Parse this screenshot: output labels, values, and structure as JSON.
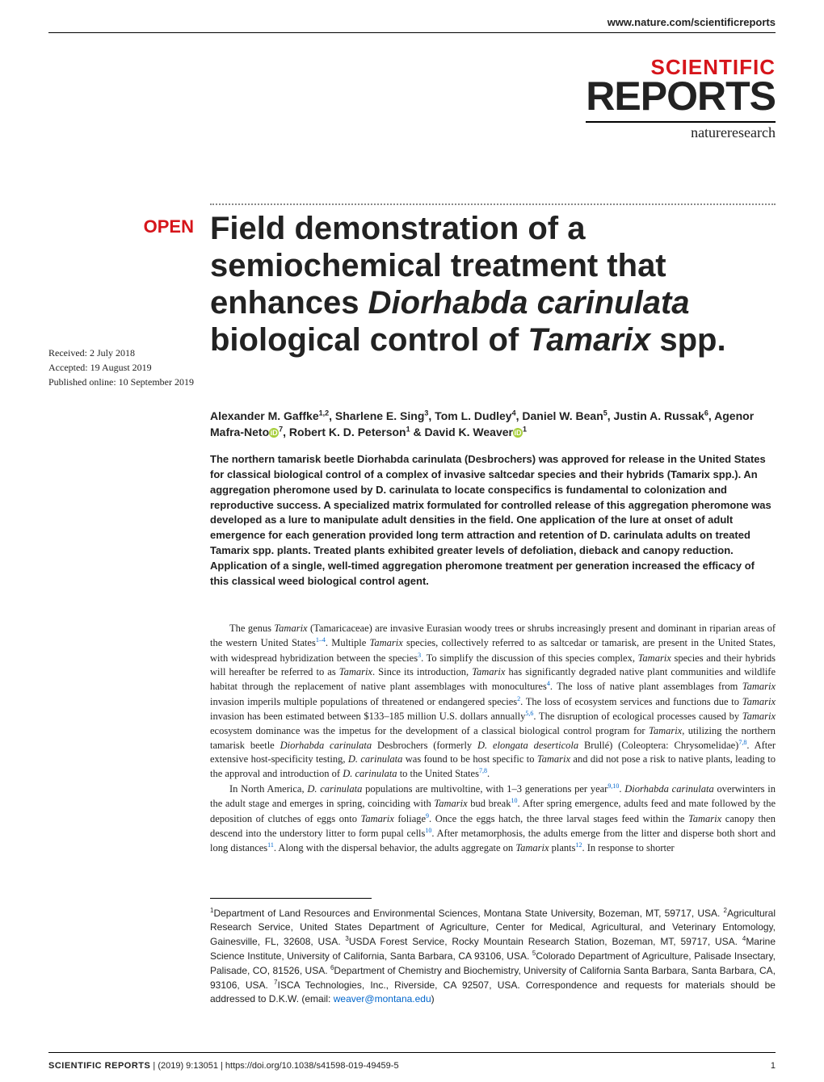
{
  "header": {
    "site_url": "www.nature.com/scientificreports",
    "logo_line1": "SCIENTIFIC",
    "logo_line2": "REPORTS",
    "logo_sub": "natureresearch"
  },
  "badge": {
    "open": "OPEN"
  },
  "title": {
    "l1": "Field demonstration of a",
    "l2": "semiochemical treatment that",
    "l3_a": "enhances ",
    "l3_b_ital": "Diorhabda carinulata",
    "l4_a": "biological control of ",
    "l4_b_ital": "Tamarix",
    "l4_c": " spp."
  },
  "meta": {
    "received": "Received: 2 July 2018",
    "accepted": "Accepted: 19 August 2019",
    "published": "Published online: 10 September 2019"
  },
  "authors": {
    "a1": "Alexander M. Gaffke",
    "s1": "1,2",
    "a2": ", Sharlene E. Sing",
    "s2": "3",
    "a3": ", Tom L. Dudley",
    "s3": "4",
    "a4": ", Daniel W. Bean",
    "s4": "5",
    "a5": ", Justin A. Russak",
    "s5": "6",
    "a6": "Agenor Mafra-Neto",
    "s6": "7",
    "a7": ", Robert K. D. Peterson",
    "s7": "1",
    "a8": " & David K. Weaver",
    "s8": "1"
  },
  "abstract": {
    "text": "The northern tamarisk beetle Diorhabda carinulata (Desbrochers) was approved for release in the United States for classical biological control of a complex of invasive saltcedar species and their hybrids (Tamarix spp.). An aggregation pheromone used by D. carinulata to locate conspecifics is fundamental to colonization and reproductive success. A specialized matrix formulated for controlled release of this aggregation pheromone was developed as a lure to manipulate adult densities in the field. One application of the lure at onset of adult emergence for each generation provided long term attraction and retention of D. carinulata adults on treated Tamarix spp. plants. Treated plants exhibited greater levels of defoliation, dieback and canopy reduction. Application of a single, well-timed aggregation pheromone treatment per generation increased the efficacy of this classical weed biological control agent."
  },
  "body": {
    "p1_a": "The genus ",
    "p1_b_ital": "Tamarix",
    "p1_c": " (Tamaricaceae) are invasive Eurasian woody trees or shrubs increasingly present and dominant in riparian areas of the western United States",
    "p1_ref1": "1–4",
    "p1_d": ". Multiple ",
    "p1_e_ital": "Tamarix",
    "p1_f": " species, collectively referred to as saltcedar or tamarisk, are present in the United States, with widespread hybridization between the species",
    "p1_ref2": "3",
    "p1_g": ". To simplify the discussion of this species complex, ",
    "p1_h_ital": "Tamarix",
    "p1_i": " species and their hybrids will hereafter be referred to as ",
    "p1_j_ital": "Tamarix",
    "p1_k": ". Since its introduction, ",
    "p1_l_ital": "Tamarix",
    "p1_m": " has significantly degraded native plant communities and wildlife habitat through the replacement of native plant assemblages with monocultures",
    "p1_ref3": "4",
    "p1_n": ". The loss of native plant assemblages from ",
    "p1_o_ital": "Tamarix",
    "p1_p": " invasion imperils multiple populations of threatened or endangered species",
    "p1_ref4": "2",
    "p1_q": ". The loss of ecosystem services and functions due to ",
    "p1_r_ital": "Tamarix",
    "p1_s": " invasion has been estimated between $133–185 million U.S. dollars annually",
    "p1_ref5": "5,6",
    "p1_t": ". The disruption of ecological processes caused by ",
    "p1_u_ital": "Tamarix",
    "p1_v": " ecosystem dominance was the impetus for the development of a classical biological control program for ",
    "p1_w_ital": "Tamarix",
    "p1_x": ", utilizing the northern tamarisk beetle ",
    "p1_y_ital": "Diorhabda carinulata",
    "p1_z": " Desbrochers (formerly ",
    "p1_aa_ital": "D. elongata deserticola",
    "p1_ab": " Brullé) (Coleoptera: Chrysomelidae)",
    "p1_ref6": "7,8",
    "p1_ac": ". After extensive host-specificity testing, ",
    "p1_ad_ital": "D. carinulata",
    "p1_ae": " was found to be host specific to ",
    "p1_af_ital": "Tamarix",
    "p1_ag": " and did not pose a risk to native plants, leading to the approval and introduction of ",
    "p1_ah_ital": "D. carinulata",
    "p1_ai": " to the United States",
    "p1_ref7": "7,8",
    "p1_aj": ".",
    "p2_a": "In North America, ",
    "p2_b_ital": "D. carinulata",
    "p2_c": " populations are multivoltine, with 1–3 generations per year",
    "p2_ref1": "9,10",
    "p2_d": ". ",
    "p2_e_ital": "Diorhabda carinulata",
    "p2_f": " overwinters in the adult stage and emerges in spring, coinciding with ",
    "p2_g_ital": "Tamarix",
    "p2_h": " bud break",
    "p2_ref2": "10",
    "p2_i": ". After spring emergence, adults feed and mate followed by the deposition of clutches of eggs onto ",
    "p2_j_ital": "Tamarix",
    "p2_k": " foliage",
    "p2_ref3": "9",
    "p2_l": ". Once the eggs hatch, the three larval stages feed within the ",
    "p2_m_ital": "Tamarix",
    "p2_n": " canopy then descend into the understory litter to form pupal cells",
    "p2_ref4": "10",
    "p2_o": ". After metamorphosis, the adults emerge from the litter and disperse both short and long distances",
    "p2_ref5": "11",
    "p2_p": ". Along with the dispersal behavior, the adults aggregate on ",
    "p2_q_ital": "Tamarix",
    "p2_r": " plants",
    "p2_ref6": "12",
    "p2_s": ". In response to shorter"
  },
  "affiliations": {
    "text_a": "Department of Land Resources and Environmental Sciences, Montana State University, Bozeman, MT, 59717, USA. ",
    "text_b": "Agricultural Research Service, United States Department of Agriculture, Center for Medical, Agricultural, and Veterinary Entomology, Gainesville, FL, 32608, USA. ",
    "text_c": "USDA Forest Service, Rocky Mountain Research Station, Bozeman, MT, 59717, USA. ",
    "text_d": "Marine Science Institute, University of California, Santa Barbara, CA 93106, USA. ",
    "text_e": "Colorado Department of Agriculture, Palisade Insectary, Palisade, CO, 81526, USA. ",
    "text_f": "Department of Chemistry and Biochemistry, University of California Santa Barbara, Santa Barbara, CA, 93106, USA. ",
    "text_g": "ISCA Technologies, Inc., Riverside, CA 92507, USA. Correspondence and requests for materials should be addressed to D.K.W. (email: ",
    "email": "weaver@montana.edu",
    "text_h": ")",
    "s1": "1",
    "s2": "2",
    "s3": "3",
    "s4": "4",
    "s5": "5",
    "s6": "6",
    "s7": "7"
  },
  "footer": {
    "journal": "SCIENTIFIC REPORTS",
    "sep": " |         ",
    "citation": "(2019) 9:13051  | https://doi.org/10.1038/s41598-019-49459-5",
    "page": "1"
  }
}
